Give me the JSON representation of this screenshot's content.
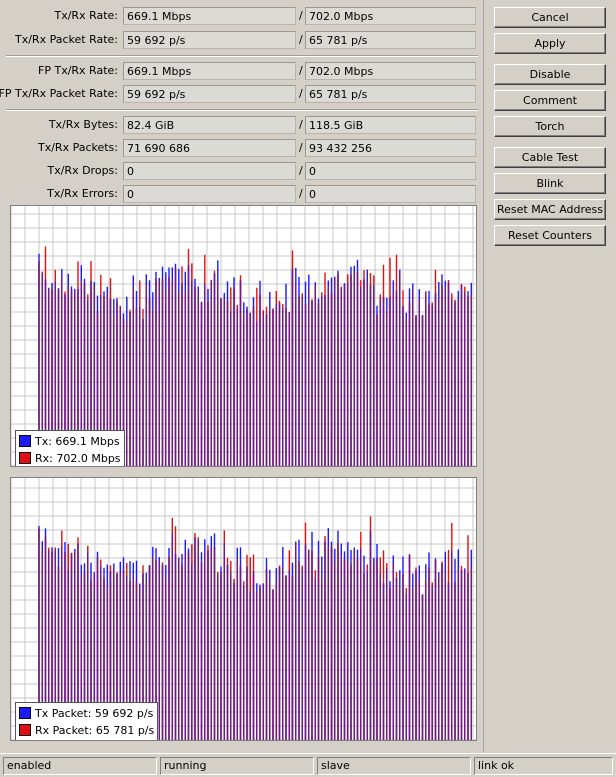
{
  "stats": [
    {
      "label": "Tx/Rx Rate:",
      "tx": "669.1 Mbps",
      "rx": "702.0 Mbps"
    },
    {
      "label": "Tx/Rx Packet Rate:",
      "tx": "59 692 p/s",
      "rx": "65 781 p/s"
    },
    {
      "label": "FP Tx/Rx Rate:",
      "tx": "669.1 Mbps",
      "rx": "702.0 Mbps"
    },
    {
      "label": "FP Tx/Rx Packet Rate:",
      "tx": "59 692 p/s",
      "rx": "65 781 p/s"
    },
    {
      "label": "Tx/Rx Bytes:",
      "tx": "82.4 GiB",
      "rx": "118.5 GiB"
    },
    {
      "label": "Tx/Rx Packets:",
      "tx": "71 690 686",
      "rx": "93 432 256"
    },
    {
      "label": "Tx/Rx Drops:",
      "tx": "0",
      "rx": "0"
    },
    {
      "label": "Tx/Rx Errors:",
      "tx": "0",
      "rx": "0"
    }
  ],
  "separator": "/",
  "buttons": {
    "cancel": "Cancel",
    "apply": "Apply",
    "disable": "Disable",
    "comment": "Comment",
    "torch": "Torch",
    "cable_test": "Cable Test",
    "blink": "Blink",
    "reset_mac": "Reset MAC Address",
    "reset_counters": "Reset Counters"
  },
  "graphs": {
    "rate_legend": {
      "tx": "Tx:  669.1 Mbps",
      "rx": "Rx:  702.0 Mbps"
    },
    "packet_legend": {
      "tx": "Tx Packet:  59 692 p/s",
      "rx": "Rx Packet:  65 781 p/s"
    }
  },
  "colors": {
    "tx": "#1a1aff",
    "rx": "#e01010",
    "overlap": "#6a1a8a",
    "grid": "#c8c8c8"
  },
  "status": {
    "enabled": "enabled",
    "running": "running",
    "slave": "slave",
    "link": "link ok"
  }
}
